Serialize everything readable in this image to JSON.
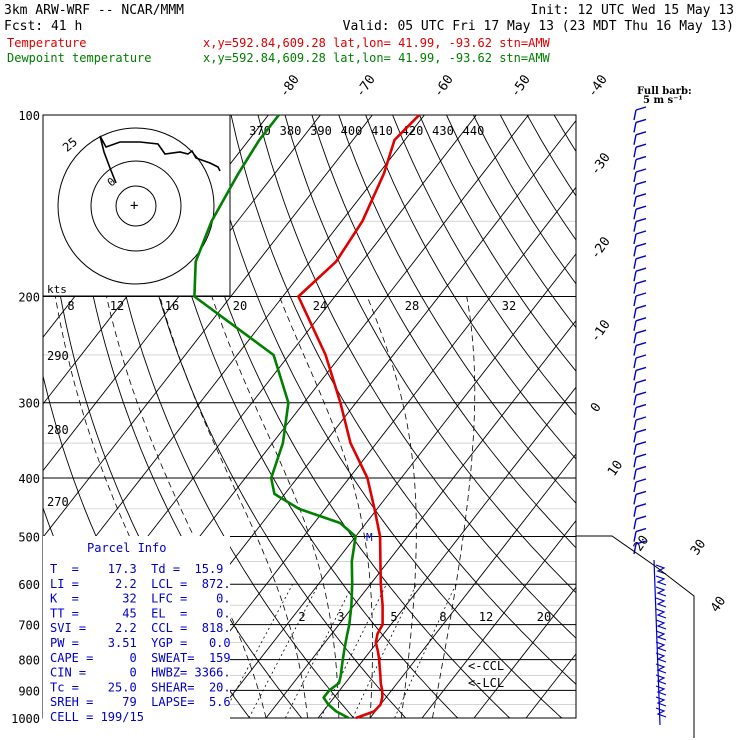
{
  "header": {
    "model": "3km ARW-WRF -- NCAR/MMM",
    "init": "Init: 12 UTC Wed 15 May 13",
    "fcst": "Fcst:   41 h",
    "valid": "Valid: 05 UTC Fri 17 May 13 (23 MDT Thu 16 May 13)",
    "temperature_label": "Temperature",
    "temperature_info": "x,y=592.84,609.28   lat,lon= 41.99, -93.62   stn=AMW",
    "dewpoint_label": "Dewpoint temperature",
    "dewpoint_info": "x,y=592.84,609.28   lat,lon= 41.99, -93.62   stn=AMW"
  },
  "colors": {
    "temperature": "#e00000",
    "dewpoint": "#008000",
    "params": "#0000cc",
    "barbs": "#0000cc"
  },
  "barb_legend": {
    "line1": "Full barb:",
    "line2": "5 m s⁻¹"
  },
  "hodograph": {
    "units": "kts",
    "speed_rings": [
      "8",
      "12",
      "16",
      "20",
      "24",
      "28",
      "32"
    ],
    "direction_label_25": "25",
    "ring_mark": "0"
  },
  "theta_labels": [
    "370",
    "380",
    "390",
    "400",
    "410",
    "420",
    "430",
    "440"
  ],
  "theta_left_labels": [
    "290",
    "280",
    "270"
  ],
  "mixing_ratio_labels": [
    "2",
    "3",
    "5",
    "8",
    "12",
    "20"
  ],
  "ccl_marker": "<-CCL",
  "lcl_marker": "<-LCL",
  "mark_m": "M",
  "parcel": {
    "title": "Parcel Info",
    "rows": [
      "T  =    17.3  Td =  15.9",
      "LI =     2.2  LCL =  872.",
      "K  =      32  LFC =    0.",
      "TT =      45  EL  =    0.",
      "SVI =    2.2  CCL =  818.",
      "PW =    3.51  YGP =   0.0",
      "CAPE =     0  SWEAT=  159",
      "CIN =      0  HWBZ= 3366.",
      "Tc =    25.0  SHEAR=  20.",
      "SREH =    79  LAPSE=  5.6",
      "CELL = 199/15"
    ]
  },
  "chart_data": {
    "type": "line",
    "title": "",
    "xlabel": "",
    "ylabel": "",
    "y_axis_pressure_hPa": [
      "100",
      "200",
      "300",
      "400",
      "500",
      "600",
      "700",
      "800",
      "900",
      "1000"
    ],
    "isotherm_labels_C": [
      "-80",
      "-70",
      "-60",
      "-50",
      "-40",
      "-30",
      "-20",
      "-10",
      "0",
      "10",
      "20",
      "30",
      "40"
    ],
    "ylim_hPa": [
      1000,
      100
    ],
    "log_scale_y": true,
    "series": [
      {
        "name": "Temperature",
        "pressure_hPa": [
          1000,
          975,
          950,
          925,
          900,
          875,
          850,
          825,
          800,
          775,
          750,
          725,
          700,
          650,
          600,
          550,
          500,
          450,
          400,
          350,
          300,
          250,
          200,
          175,
          150,
          125,
          110,
          100
        ],
        "temp_C": [
          17.3,
          19.8,
          20.0,
          19.3,
          18.2,
          16.8,
          15.6,
          14.3,
          13.0,
          11.5,
          9.8,
          8.8,
          8.4,
          5.5,
          2.0,
          -1.5,
          -5.3,
          -10.5,
          -16.5,
          -25.0,
          -33.0,
          -43.0,
          -57.0,
          -55.0,
          -56.0,
          -59.0,
          -62.0,
          -61.0
        ]
      },
      {
        "name": "Dewpoint temperature",
        "pressure_hPa": [
          1000,
          975,
          950,
          925,
          900,
          875,
          850,
          825,
          800,
          775,
          750,
          725,
          700,
          650,
          600,
          550,
          500,
          475,
          450,
          425,
          400,
          350,
          300,
          250,
          200,
          175,
          150,
          125,
          110,
          100
        ],
        "temp_C": [
          15.9,
          12.5,
          10.0,
          8.0,
          8.0,
          8.8,
          8.0,
          7.0,
          6.0,
          5.0,
          4.0,
          3.0,
          2.0,
          -0.5,
          -3.5,
          -7.0,
          -10.0,
          -15.0,
          -25.0,
          -32.0,
          -35.0,
          -38.0,
          -43.0,
          -53.0,
          -77.0,
          -82.0,
          -85.0,
          -87.0,
          -88.0,
          -88.0
        ]
      }
    ]
  }
}
